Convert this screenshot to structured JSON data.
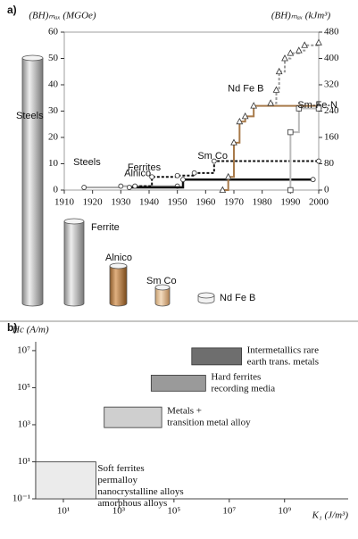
{
  "panels": [
    "a)",
    "b)"
  ],
  "cylinders": [
    "Steels",
    "Ferrite",
    "Alnico",
    "Sm Co",
    "Nd Fe B"
  ],
  "chart_data": [
    {
      "type": "step-line",
      "y_label": "(BH)ₘₐₓ (MGOe)",
      "y2_label": "(BH)ₘₐₓ (kJm³)",
      "xlim": [
        1910,
        2000
      ],
      "xticks": [
        1910,
        1920,
        1930,
        1940,
        1950,
        1960,
        1970,
        1980,
        1990,
        2000
      ],
      "ylim": [
        0,
        60
      ],
      "yticks": [
        0,
        10,
        20,
        30,
        40,
        50,
        60
      ],
      "y2lim": [
        0,
        480
      ],
      "y2ticks": [
        0,
        80,
        160,
        240,
        320,
        400,
        480
      ],
      "series": [
        {
          "name": "Steels",
          "color": "#aaaaaa",
          "dash": false,
          "marker": "circle",
          "x": [
            1917,
            1930,
            1950
          ],
          "values": [
            1,
            1.5,
            1.5
          ]
        },
        {
          "name": "Ferrites",
          "color": "#111111",
          "dash": false,
          "marker": "circle",
          "x": [
            1933,
            1952,
            1998
          ],
          "values": [
            1,
            4,
            4
          ]
        },
        {
          "name": "Alnico",
          "color": "#111111",
          "dash": true,
          "marker": "circle",
          "x": [
            1935,
            1941,
            1950,
            1956,
            1963,
            2000
          ],
          "values": [
            1.5,
            5,
            5.5,
            6.5,
            11,
            11
          ]
        },
        {
          "name": "Sm Co",
          "color": "#a87a4a",
          "dash": false,
          "marker": "triangle",
          "x": [
            1966,
            1968,
            1970,
            1972,
            1974,
            1977,
            2000
          ],
          "values": [
            0,
            5,
            18,
            26,
            28,
            32,
            32
          ]
        },
        {
          "name": "Nd Fe B",
          "color": "#999999",
          "dash": true,
          "marker": "triangle",
          "x": [
            1983,
            1985,
            1986,
            1988,
            1990,
            1993,
            1995,
            2000
          ],
          "values": [
            33,
            38,
            45,
            50,
            52,
            53,
            55,
            56
          ]
        },
        {
          "name": "Sm-Fe-N",
          "color": "#bbbbbb",
          "dash": false,
          "marker": "square",
          "x": [
            1990,
            1990,
            1993,
            2000
          ],
          "values": [
            0,
            22,
            31,
            31
          ]
        }
      ]
    },
    {
      "type": "range-box",
      "log_x": true,
      "log_y": true,
      "x_label": "K₁ (J/m³)",
      "y_label": "Hc (A/m)",
      "xlim": [
        1,
        200000000000
      ],
      "xticks": [
        {
          "value": 10,
          "label": "10¹"
        },
        {
          "value": 1000,
          "label": "10³"
        },
        {
          "value": 100000,
          "label": "10⁵"
        },
        {
          "value": 10000000,
          "label": "10⁷"
        },
        {
          "value": 1000000000,
          "label": "10⁹"
        }
      ],
      "ylim": [
        0.1,
        30000000
      ],
      "yticks": [
        {
          "value": 0.1,
          "label": "10⁻¹"
        },
        {
          "value": 10,
          "label": "10¹"
        },
        {
          "value": 1000,
          "label": "10³"
        },
        {
          "value": 100000,
          "label": "10⁵"
        },
        {
          "value": 10000000,
          "label": "10⁷"
        }
      ],
      "boxes": [
        {
          "label": [
            "Soft ferrites",
            "permalloy",
            "nanocrystalline alloys",
            "amorphous alloys"
          ],
          "color": "#ebebeb",
          "x": [
            1,
            150
          ],
          "y": [
            0.1,
            10
          ]
        },
        {
          "label": [
            "Metals +",
            "transition metal alloy"
          ],
          "color": "#cfcfcf",
          "x": [
            300,
            36000
          ],
          "y": [
            700,
            9000
          ]
        },
        {
          "label": [
            "Hard ferrites",
            "recording media"
          ],
          "color": "#9a9a9a",
          "x": [
            15000,
            1400000
          ],
          "y": [
            65000,
            470000
          ]
        },
        {
          "label": [
            "Intermetallics rare",
            "earth trans. metals"
          ],
          "color": "#6e6e6e",
          "x": [
            440000,
            28000000
          ],
          "y": [
            1700000,
            14000000
          ]
        }
      ]
    }
  ]
}
